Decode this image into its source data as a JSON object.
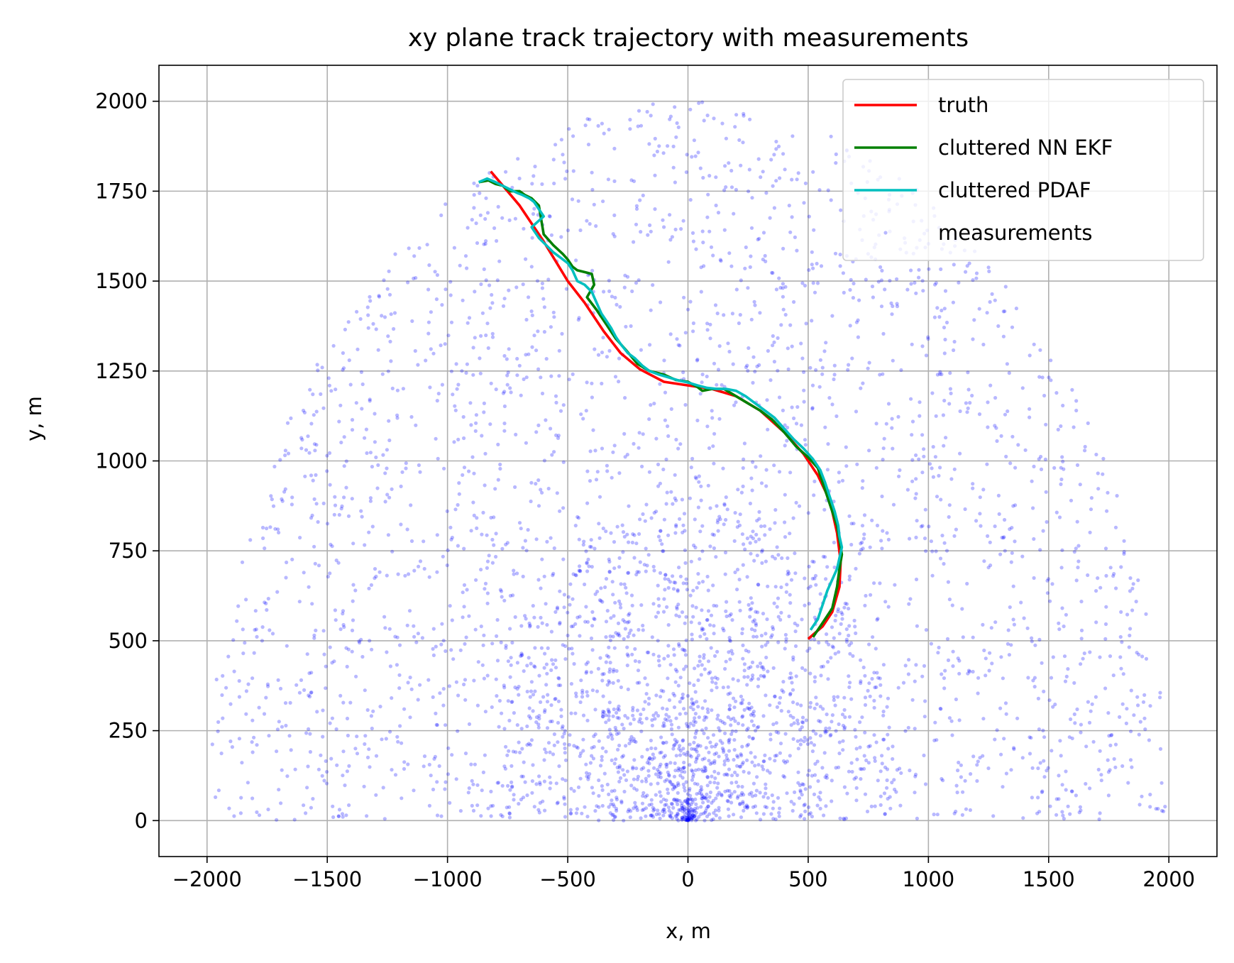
{
  "chart_data": {
    "type": "line",
    "title": "xy plane track trajectory with measurements",
    "xlabel": "x, m",
    "ylabel": "y, m",
    "xlim": [
      -2200,
      2200
    ],
    "ylim": [
      -100,
      2100
    ],
    "grid": true,
    "legend_position": "top-right",
    "x_ticks": [
      -2000,
      -1500,
      -1000,
      -500,
      0,
      500,
      1000,
      1500,
      2000
    ],
    "x_tick_labels": [
      "−2000",
      "−1500",
      "−1000",
      "−500",
      "0",
      "500",
      "1000",
      "1500",
      "2000"
    ],
    "y_ticks": [
      0,
      250,
      500,
      750,
      1000,
      1250,
      1500,
      1750,
      2000
    ],
    "y_tick_labels": [
      "0",
      "250",
      "500",
      "750",
      "1000",
      "1250",
      "1500",
      "1750",
      "2000"
    ],
    "series": [
      {
        "name": "truth",
        "color": "#ff0000",
        "style": "line",
        "x": [
          -820,
          -700,
          -600,
          -500,
          -430,
          -350,
          -280,
          -200,
          -100,
          0,
          100,
          200,
          300,
          400,
          480,
          540,
          590,
          620,
          635,
          630,
          600,
          560,
          500
        ],
        "y": [
          1805,
          1710,
          1610,
          1500,
          1440,
          1360,
          1300,
          1255,
          1220,
          1210,
          1200,
          1180,
          1140,
          1080,
          1020,
          960,
          890,
          800,
          720,
          650,
          580,
          540,
          505
        ]
      },
      {
        "name": "cluttered NN EKF",
        "color": "#008000",
        "style": "line",
        "x": [
          -870,
          -830,
          -800,
          -770,
          -740,
          -700,
          -680,
          -650,
          -620,
          -600,
          -560,
          -520,
          -500,
          -480,
          -460,
          -430,
          -400,
          -390,
          -420,
          -380,
          -340,
          -300,
          -260,
          -210,
          -160,
          -100,
          -50,
          0,
          40,
          60,
          100,
          150,
          200,
          250,
          300,
          350,
          400,
          450,
          500,
          540,
          560,
          580,
          600,
          620,
          630,
          640,
          630,
          620,
          600,
          560,
          520
        ],
        "y": [
          1775,
          1780,
          1770,
          1765,
          1750,
          1750,
          1740,
          1730,
          1710,
          1630,
          1600,
          1575,
          1560,
          1540,
          1530,
          1525,
          1520,
          1490,
          1455,
          1420,
          1380,
          1340,
          1310,
          1270,
          1250,
          1240,
          1225,
          1220,
          1205,
          1195,
          1200,
          1200,
          1180,
          1160,
          1140,
          1115,
          1080,
          1040,
          1010,
          980,
          940,
          900,
          860,
          820,
          780,
          740,
          700,
          650,
          590,
          550,
          510
        ]
      },
      {
        "name": "cluttered PDAF",
        "color": "#00bfbf",
        "style": "line",
        "x": [
          -870,
          -835,
          -800,
          -770,
          -740,
          -710,
          -690,
          -660,
          -640,
          -620,
          -600,
          -650,
          -620,
          -590,
          -560,
          -530,
          -500,
          -480,
          -460,
          -430,
          -400,
          -380,
          -360,
          -340,
          -320,
          -300,
          -280,
          -250,
          -220,
          -190,
          -160,
          -120,
          -80,
          -40,
          0,
          40,
          80,
          120,
          160,
          200,
          240,
          280,
          320,
          360,
          400,
          440,
          480,
          520,
          550,
          570,
          590,
          610,
          625,
          630,
          640,
          630,
          620,
          600,
          580,
          560,
          540,
          510
        ],
        "y": [
          1775,
          1785,
          1775,
          1765,
          1755,
          1745,
          1740,
          1730,
          1720,
          1700,
          1680,
          1650,
          1620,
          1600,
          1580,
          1565,
          1550,
          1530,
          1500,
          1490,
          1470,
          1440,
          1410,
          1390,
          1370,
          1345,
          1325,
          1300,
          1285,
          1265,
          1250,
          1240,
          1232,
          1224,
          1218,
          1210,
          1203,
          1200,
          1200,
          1195,
          1180,
          1160,
          1140,
          1120,
          1090,
          1060,
          1035,
          1005,
          975,
          940,
          900,
          860,
          820,
          790,
          760,
          730,
          700,
          670,
          640,
          600,
          560,
          530
        ]
      },
      {
        "name": "measurements",
        "color": "#0000ff",
        "style": "scatter",
        "note_points": "generated clutter: uniform over a half-disc of radius 2000 m centered at origin plus dense cluster near origin"
      }
    ]
  }
}
